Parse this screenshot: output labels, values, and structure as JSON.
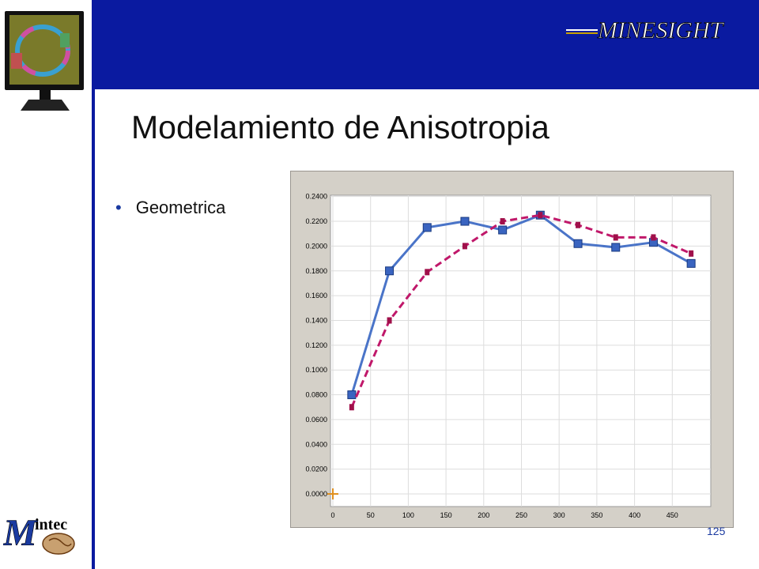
{
  "slide": {
    "title": "Modelamiento de Anisotropia",
    "bullet": "Geometrica",
    "page_number": "125",
    "brand_logo": "MINESIGHT",
    "company_logo": "Mintec"
  },
  "colors": {
    "header": "#0a1aa0",
    "series1": "#4a74c8",
    "series2": "#c0186a"
  },
  "chart_data": {
    "type": "line",
    "xlim": [
      0,
      500
    ],
    "ylim": [
      0,
      0.25
    ],
    "x_ticks": [
      0,
      50,
      100,
      150,
      200,
      250,
      300,
      350,
      400,
      450
    ],
    "y_ticks": [
      "0.0000",
      "0.0200",
      "0.0400",
      "0.0600",
      "0.0800",
      "0.1000",
      "0.1200",
      "0.1400",
      "0.1600",
      "0.1800",
      "0.2000",
      "0.2200",
      "0.2400"
    ],
    "grid": true,
    "series": [
      {
        "style": "solid",
        "marker": "square",
        "color": "#4a74c8",
        "x": [
          25,
          75,
          125,
          175,
          225,
          275,
          325,
          375,
          425,
          475
        ],
        "y": [
          0.08,
          0.18,
          0.215,
          0.22,
          0.213,
          0.225,
          0.202,
          0.199,
          0.203,
          0.186
        ]
      },
      {
        "style": "dashed",
        "marker": "small-square",
        "color": "#c0186a",
        "x": [
          25,
          75,
          125,
          175,
          225,
          275,
          325,
          375,
          425,
          475
        ],
        "y": [
          0.07,
          0.14,
          0.179,
          0.2,
          0.22,
          0.225,
          0.217,
          0.207,
          0.207,
          0.194
        ]
      }
    ]
  }
}
